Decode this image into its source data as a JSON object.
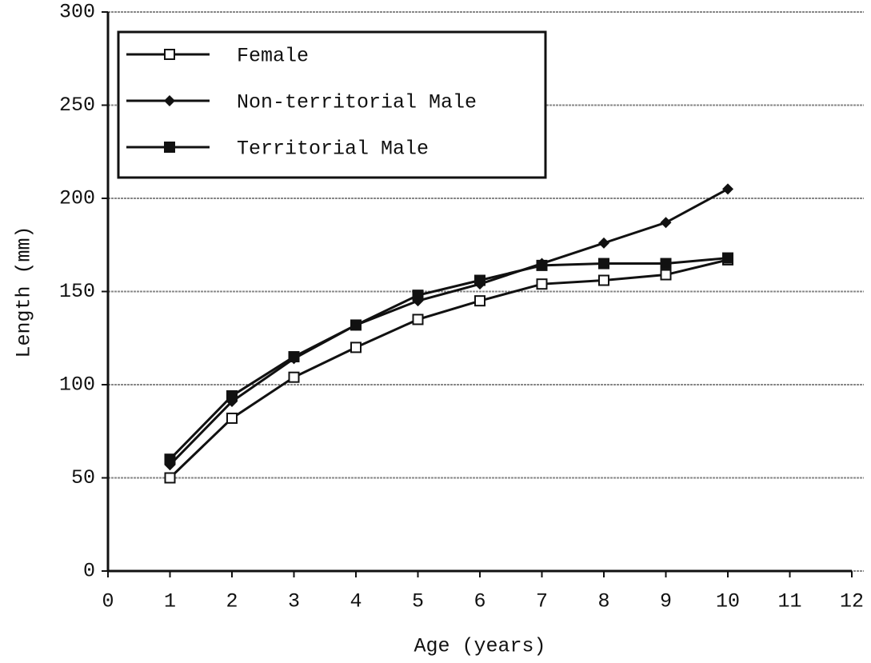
{
  "chart_data": {
    "type": "line",
    "x_label": "Age (years)",
    "y_label": "Length (mm)",
    "x": [
      1,
      2,
      3,
      4,
      5,
      6,
      7,
      8,
      9,
      10
    ],
    "series": [
      {
        "name": "Female",
        "color": "#111111",
        "marker": "open-square",
        "values": [
          50,
          82,
          104,
          120,
          135,
          145,
          154,
          156,
          159,
          167
        ]
      },
      {
        "name": "Non-territorial Male",
        "color": "#111111",
        "marker": "diamond",
        "values": [
          57,
          91,
          114,
          132,
          145,
          154,
          165,
          176,
          187,
          205
        ]
      },
      {
        "name": "Territorial Male",
        "color": "#111111",
        "marker": "square",
        "values": [
          60,
          94,
          115,
          132,
          148,
          156,
          164,
          165,
          165,
          168
        ]
      }
    ],
    "xlim": [
      0,
      12
    ],
    "xticks": [
      0,
      1,
      2,
      3,
      4,
      5,
      6,
      7,
      8,
      9,
      10,
      11,
      12
    ],
    "ylim": [
      0,
      300
    ],
    "yticks": [
      0,
      50,
      100,
      150,
      200,
      250,
      300
    ],
    "grid": true,
    "legend": "upper left"
  }
}
